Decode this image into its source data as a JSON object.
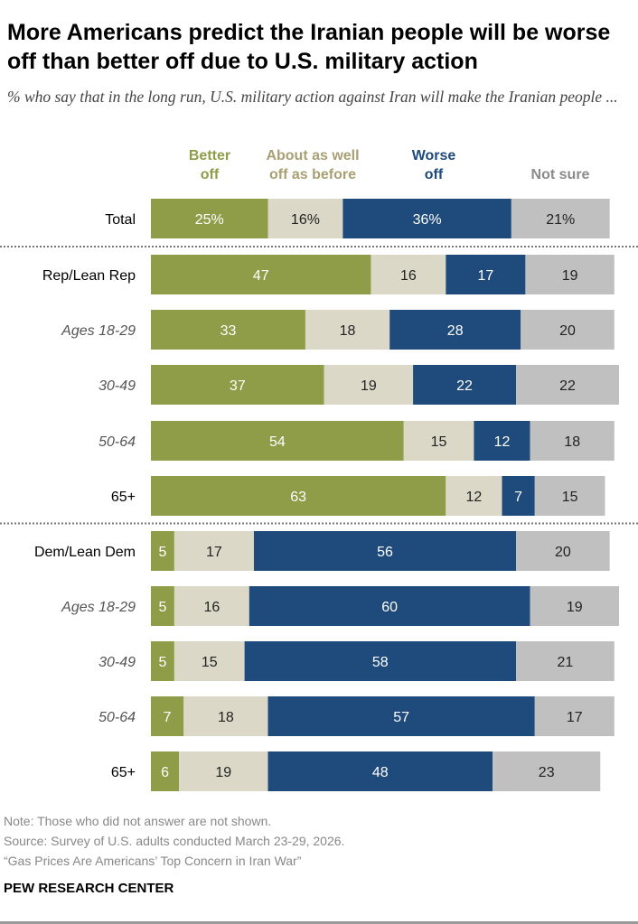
{
  "chart_data": {
    "type": "bar",
    "orientation": "horizontal",
    "stacked": true,
    "title": "More Americans predict the Iranian people will be worse off than better off due to U.S. military action",
    "subtitle": "% who say that in the long run, U.S. military action against Iran will make the Iranian people ...",
    "legend_placement": "top",
    "grid": false,
    "categories": [
      "Total",
      "Rep/Lean Rep",
      "Ages 18-29",
      "30-49",
      "50-64",
      "65+",
      "Dem/Lean Dem",
      "Ages 18-29",
      "30-49",
      "50-64",
      "65+"
    ],
    "category_italic": [
      false,
      false,
      true,
      true,
      true,
      false,
      false,
      true,
      true,
      true,
      false
    ],
    "value_labels_percent_rows": [
      0
    ],
    "series": [
      {
        "name": "Better off",
        "legend": [
          "Better",
          "off"
        ],
        "color": "#8f9d48",
        "legend_color": "#8f9d48",
        "label_color": "#ffffff",
        "values": [
          25,
          47,
          33,
          37,
          54,
          63,
          5,
          5,
          5,
          7,
          6
        ]
      },
      {
        "name": "About as well off as before",
        "legend": [
          "About as well",
          "off as before"
        ],
        "color": "#dcd8c8",
        "legend_color": "#a89f72",
        "label_color": "#222222",
        "values": [
          16,
          16,
          18,
          19,
          15,
          12,
          17,
          16,
          15,
          18,
          19
        ]
      },
      {
        "name": "Worse off",
        "legend": [
          "Worse",
          "off"
        ],
        "color": "#1f4a7c",
        "legend_color": "#1f4a7c",
        "label_color": "#ffffff",
        "values": [
          36,
          17,
          28,
          22,
          12,
          7,
          56,
          60,
          58,
          57,
          48
        ]
      },
      {
        "name": "Not sure",
        "legend": [
          "",
          "Not sure"
        ],
        "color": "#c0c0c0",
        "legend_color": "#8a8a8a",
        "label_color": "#222222",
        "values": [
          21,
          19,
          20,
          22,
          18,
          15,
          20,
          19,
          21,
          17,
          23
        ]
      }
    ],
    "separators_after": [
      0,
      5
    ]
  },
  "notes": {
    "note": "Note: Those who did not answer are not shown.",
    "source": "Source: Survey of U.S. adults conducted March 23-29, 2026.",
    "report": "“Gas Prices Are Americans’ Top Concern in Iran War”",
    "brand": "PEW RESEARCH CENTER"
  }
}
